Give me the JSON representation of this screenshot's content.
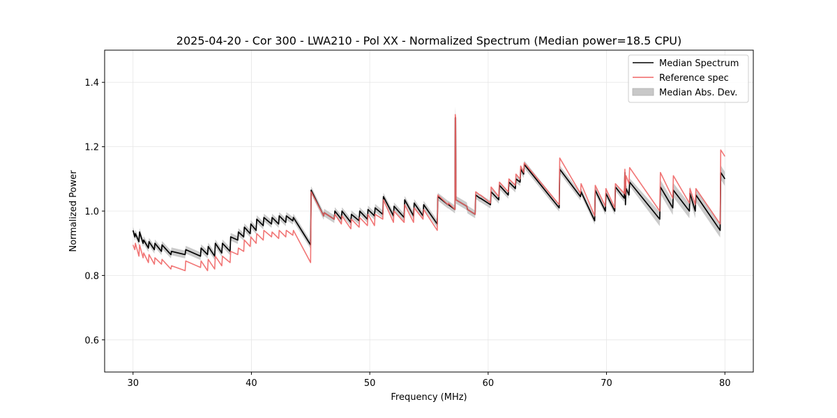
{
  "chart_data": {
    "type": "line",
    "title": "2025-04-20 - Cor 300 - LWA210 - Pol XX - Normalized Spectrum (Median power=18.5 CPU)",
    "xlabel": "Frequency (MHz)",
    "ylabel": "Normalized Power",
    "xlim": [
      27.6,
      82.4
    ],
    "ylim": [
      0.5,
      1.5
    ],
    "x_ticks": [
      30,
      40,
      50,
      60,
      70,
      80
    ],
    "y_ticks": [
      0.6,
      0.8,
      1.0,
      1.2,
      1.4
    ],
    "x_tick_labels": [
      "30",
      "40",
      "50",
      "60",
      "70",
      "80"
    ],
    "y_tick_labels": [
      "0.6",
      "0.8",
      "1.0",
      "1.2",
      "1.4"
    ],
    "grid": true,
    "legend_position": "top-right",
    "legend": [
      {
        "label": "Median Spectrum",
        "kind": "line",
        "color": "#000000"
      },
      {
        "label": "Reference spec",
        "kind": "line",
        "color": "#f06666"
      },
      {
        "label": "Median Abs. Dev.",
        "kind": "band",
        "color": "#c8c8c8"
      }
    ],
    "series": [
      {
        "name": "Median Spectrum",
        "color": "#000000",
        "x": [
          30.0,
          30.15,
          30.2,
          30.5,
          30.55,
          30.85,
          30.9,
          31.3,
          31.35,
          31.8,
          31.85,
          32.4,
          32.45,
          33.2,
          33.25,
          34.4,
          34.45,
          35.7,
          35.75,
          36.3,
          36.35,
          36.9,
          36.95,
          37.5,
          37.55,
          38.2,
          38.25,
          38.85,
          38.9,
          39.35,
          39.4,
          39.9,
          39.95,
          40.4,
          40.45,
          41.0,
          41.05,
          41.7,
          41.75,
          42.3,
          42.35,
          42.9,
          42.95,
          43.5,
          43.55,
          45.0,
          45.05,
          46.1,
          46.15,
          47.0,
          47.05,
          47.6,
          47.65,
          48.4,
          48.45,
          49.1,
          49.15,
          49.8,
          49.85,
          50.4,
          50.45,
          51.1,
          51.15,
          52.0,
          52.05,
          52.9,
          52.95,
          53.7,
          53.75,
          54.5,
          54.55,
          55.7,
          55.75,
          56.6,
          56.65,
          57.2,
          57.22,
          57.25,
          57.28,
          58.2,
          58.25,
          58.9,
          58.95,
          59.3,
          59.35,
          60.2,
          60.25,
          60.9,
          60.95,
          61.7,
          61.75,
          62.3,
          62.35,
          62.7,
          62.75,
          63.0,
          63.05,
          66.0,
          66.05,
          67.8,
          67.85,
          69.0,
          69.05,
          69.9,
          69.95,
          70.7,
          70.75,
          71.5,
          71.55,
          71.6,
          71.65,
          71.9,
          71.95,
          74.5,
          74.55,
          75.6,
          75.65,
          77.0,
          77.05,
          77.5,
          77.55,
          79.6,
          79.65,
          80.0
        ],
        "y": [
          0.94,
          0.92,
          0.93,
          0.905,
          0.935,
          0.9,
          0.91,
          0.885,
          0.905,
          0.88,
          0.9,
          0.875,
          0.895,
          0.865,
          0.875,
          0.865,
          0.88,
          0.86,
          0.885,
          0.865,
          0.89,
          0.86,
          0.9,
          0.87,
          0.9,
          0.875,
          0.92,
          0.91,
          0.935,
          0.92,
          0.95,
          0.93,
          0.96,
          0.94,
          0.975,
          0.955,
          0.98,
          0.96,
          0.98,
          0.96,
          0.985,
          0.965,
          0.985,
          0.97,
          0.98,
          0.895,
          1.065,
          0.985,
          0.995,
          0.975,
          1.0,
          0.975,
          1.0,
          0.965,
          0.99,
          0.97,
          1.0,
          0.975,
          1.005,
          0.985,
          1.01,
          0.99,
          1.045,
          0.985,
          1.015,
          0.98,
          1.035,
          0.985,
          1.025,
          0.985,
          1.02,
          0.96,
          1.045,
          1.02,
          1.02,
          1.005,
          1.29,
          1.29,
          1.035,
          1.015,
          1.005,
          0.99,
          1.05,
          1.04,
          1.04,
          1.02,
          1.06,
          1.035,
          1.08,
          1.05,
          1.09,
          1.07,
          1.1,
          1.09,
          1.13,
          1.115,
          1.145,
          1.01,
          1.13,
          1.045,
          1.06,
          0.97,
          1.065,
          1.0,
          1.055,
          1.0,
          1.075,
          1.04,
          1.12,
          1.02,
          1.07,
          1.05,
          1.09,
          0.975,
          1.075,
          1.01,
          1.065,
          1.0,
          1.055,
          1.0,
          1.05,
          0.94,
          1.12,
          1.1
        ]
      },
      {
        "name": "Reference spec",
        "color": "#f06666",
        "x": [
          30.0,
          30.15,
          30.2,
          30.5,
          30.55,
          30.85,
          30.9,
          31.3,
          31.35,
          31.8,
          31.85,
          32.4,
          32.45,
          33.2,
          33.25,
          34.4,
          34.45,
          35.7,
          35.75,
          36.3,
          36.35,
          36.9,
          36.95,
          37.5,
          37.55,
          38.2,
          38.25,
          38.85,
          38.9,
          39.35,
          39.4,
          39.9,
          39.95,
          40.4,
          40.45,
          41.0,
          41.05,
          41.7,
          41.75,
          42.3,
          42.35,
          42.9,
          42.95,
          43.5,
          43.55,
          45.0,
          45.05,
          46.1,
          46.15,
          47.0,
          47.05,
          47.6,
          47.65,
          48.4,
          48.45,
          49.1,
          49.15,
          49.8,
          49.85,
          50.4,
          50.45,
          51.1,
          51.15,
          52.0,
          52.05,
          52.9,
          52.95,
          53.7,
          53.75,
          54.5,
          54.55,
          55.7,
          55.75,
          56.6,
          56.65,
          57.2,
          57.22,
          57.25,
          57.28,
          58.2,
          58.25,
          58.9,
          58.95,
          59.3,
          59.35,
          60.2,
          60.25,
          60.9,
          60.95,
          61.7,
          61.75,
          62.3,
          62.35,
          62.7,
          62.75,
          63.0,
          63.05,
          66.0,
          66.05,
          67.8,
          67.85,
          69.0,
          69.05,
          69.9,
          69.95,
          70.7,
          70.75,
          71.5,
          71.55,
          71.6,
          71.65,
          71.9,
          71.95,
          74.5,
          74.55,
          75.6,
          75.65,
          77.0,
          77.05,
          77.5,
          77.55,
          79.6,
          79.65,
          80.0
        ],
        "y": [
          0.895,
          0.88,
          0.9,
          0.86,
          0.895,
          0.855,
          0.87,
          0.84,
          0.865,
          0.835,
          0.855,
          0.835,
          0.85,
          0.82,
          0.83,
          0.815,
          0.845,
          0.825,
          0.845,
          0.815,
          0.85,
          0.82,
          0.86,
          0.83,
          0.86,
          0.84,
          0.875,
          0.865,
          0.885,
          0.875,
          0.91,
          0.89,
          0.92,
          0.9,
          0.93,
          0.91,
          0.94,
          0.92,
          0.935,
          0.915,
          0.94,
          0.92,
          0.94,
          0.925,
          0.94,
          0.84,
          1.06,
          0.985,
          0.995,
          0.975,
          0.99,
          0.96,
          0.985,
          0.945,
          0.975,
          0.95,
          0.98,
          0.955,
          0.99,
          0.955,
          0.99,
          0.975,
          1.035,
          0.965,
          1.0,
          0.965,
          1.02,
          0.965,
          1.01,
          0.975,
          1.005,
          0.94,
          1.05,
          1.02,
          1.025,
          1.005,
          1.3,
          1.29,
          1.035,
          1.015,
          1.005,
          0.99,
          1.06,
          1.05,
          1.05,
          1.025,
          1.075,
          1.045,
          1.09,
          1.06,
          1.1,
          1.08,
          1.115,
          1.1,
          1.14,
          1.12,
          1.15,
          1.02,
          1.165,
          1.055,
          1.085,
          0.985,
          1.08,
          1.015,
          1.07,
          1.01,
          1.085,
          1.055,
          1.13,
          1.05,
          1.11,
          1.085,
          1.135,
          1.0,
          1.12,
          1.04,
          1.11,
          1.025,
          1.07,
          1.02,
          1.07,
          0.96,
          1.19,
          1.17
        ]
      }
    ],
    "band": {
      "name": "Median Abs. Dev.",
      "color": "#c8c8c8",
      "half_width": 0.012,
      "wide_from": 74.5,
      "wide_half_width": 0.022,
      "spike_x": 57.22,
      "spike_upper": 1.325
    }
  }
}
